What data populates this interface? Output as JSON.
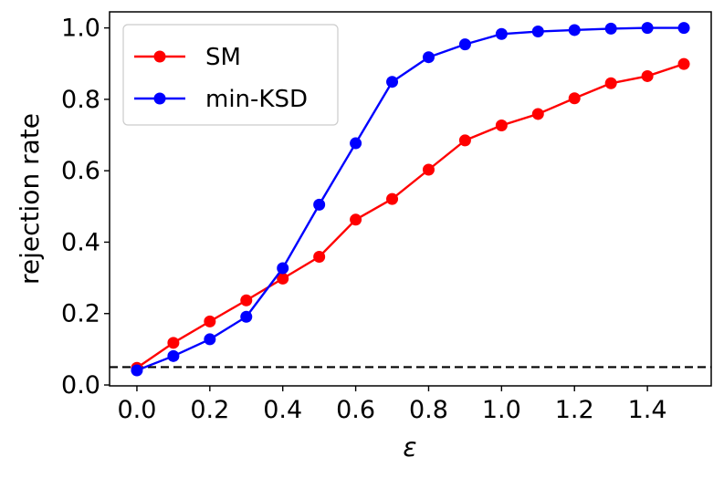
{
  "chart_data": {
    "type": "line",
    "title": "",
    "xlabel": "ε",
    "ylabel": "rejection rate",
    "xlim": [
      -0.075,
      1.575
    ],
    "ylim": [
      -0.0025,
      1.045
    ],
    "xticks": [
      0.0,
      0.2,
      0.4,
      0.6,
      0.8,
      1.0,
      1.2,
      1.4
    ],
    "xtick_labels": [
      "0.0",
      "0.2",
      "0.4",
      "0.6",
      "0.8",
      "1.0",
      "1.2",
      "1.4"
    ],
    "yticks": [
      0.0,
      0.2,
      0.4,
      0.6,
      0.8,
      1.0
    ],
    "ytick_labels": [
      "0.0",
      "0.2",
      "0.4",
      "0.6",
      "0.8",
      "1.0"
    ],
    "grid": false,
    "legend_position": "top-left",
    "x": [
      0.0,
      0.1,
      0.2,
      0.3,
      0.4,
      0.5,
      0.6,
      0.7,
      0.8,
      0.9,
      1.0,
      1.1,
      1.2,
      1.3,
      1.4,
      1.5
    ],
    "series": [
      {
        "name": "SM",
        "color": "#ff0000",
        "values": [
          0.048,
          0.118,
          0.178,
          0.237,
          0.298,
          0.359,
          0.463,
          0.521,
          0.603,
          0.685,
          0.727,
          0.759,
          0.803,
          0.845,
          0.865,
          0.899
        ]
      },
      {
        "name": "min-KSD",
        "color": "#0000ff",
        "values": [
          0.041,
          0.081,
          0.128,
          0.191,
          0.327,
          0.505,
          0.677,
          0.849,
          0.918,
          0.954,
          0.983,
          0.99,
          0.994,
          0.998,
          1.0,
          1.0
        ]
      }
    ],
    "reference_line": {
      "y": 0.05,
      "style": "dashed",
      "color": "#000000"
    }
  }
}
